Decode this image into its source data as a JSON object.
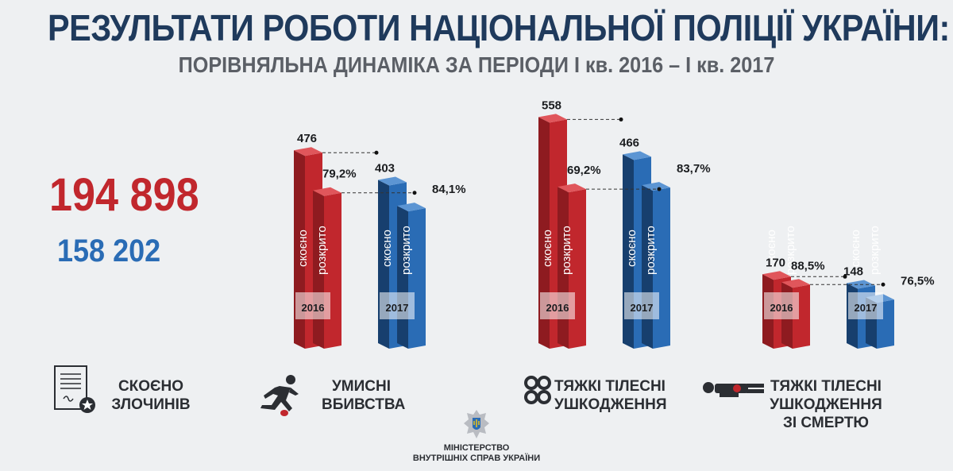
{
  "title": "РЕЗУЛЬТАТИ РОБОТИ НАЦІОНАЛЬНОЇ ПОЛІЦІЇ УКРАЇНИ:",
  "subtitle": "ПОРІВНЯЛЬНА ДИНАМІКА ЗА ПЕРІОДИ І кв. 2016 – І кв. 2017",
  "totals": {
    "y2016": "194 898",
    "y2017": "158 202"
  },
  "colors": {
    "y2016": "#c1272d",
    "y2017": "#2a6cb5",
    "title": "#1f3a5c"
  },
  "bar_labels": {
    "committed": "скоєно",
    "solved": "розкрито"
  },
  "years": [
    "2016",
    "2017"
  ],
  "categories": [
    {
      "label": "СКОЄНО ЗЛОЧИНІВ",
      "icon": "document-icon"
    },
    {
      "label": "УМИСНІ ВБИВСТВА",
      "icon": "runner-icon"
    },
    {
      "label": "ТЯЖКІ ТІЛЕСНІ УШКОДЖЕННЯ",
      "icon": "brass-knuckles-icon"
    },
    {
      "label": "ТЯЖКІ ТІЛЕСНІ УШКОДЖЕННЯ ЗІ СМЕРТЮ",
      "icon": "victim-icon"
    }
  ],
  "chart_data": {
    "type": "bar",
    "groups": [
      {
        "category": "УМИСНІ ВБИВСТВА",
        "y2016": {
          "committed": 476,
          "solved_pct": "79,2%"
        },
        "y2017": {
          "committed": 403,
          "solved_pct": "84,1%"
        }
      },
      {
        "category": "ТЯЖКІ ТІЛЕСНІ УШКОДЖЕННЯ",
        "y2016": {
          "committed": 558,
          "solved_pct": "69,2%"
        },
        "y2017": {
          "committed": 466,
          "solved_pct": "83,7%"
        }
      },
      {
        "category": "ТЯЖКІ ТІЛЕСНІ УШКОДЖЕННЯ ЗІ СМЕРТЮ",
        "y2016": {
          "committed": 170,
          "solved_pct": "88,5%"
        },
        "y2017": {
          "committed": 148,
          "solved_pct": "76,5%"
        }
      }
    ]
  },
  "ministry": {
    "line1": "МІНІСТЕРСТВО",
    "line2": "ВНУТРІШНІХ СПРАВ УКРАЇНИ"
  }
}
